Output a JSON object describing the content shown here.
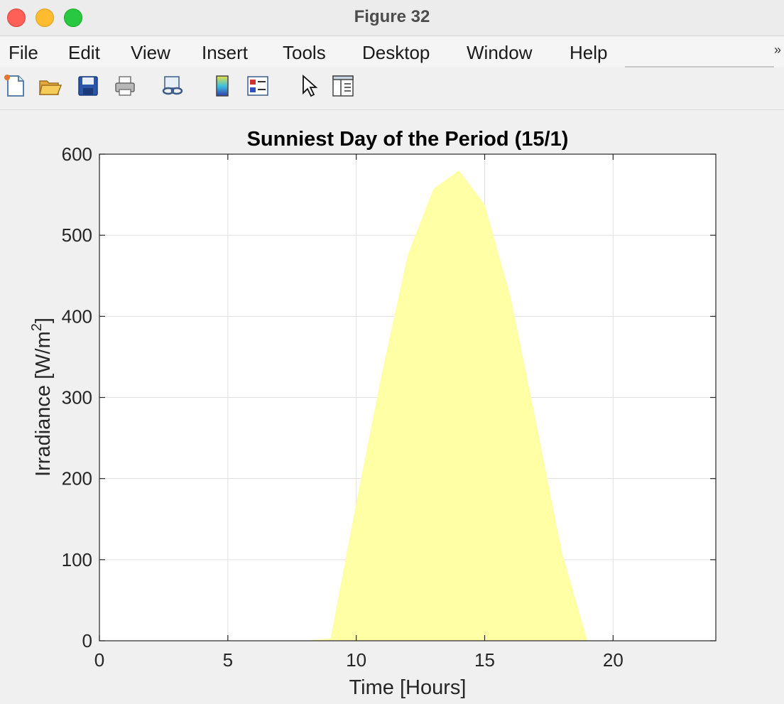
{
  "window": {
    "title": "Figure 32"
  },
  "menu": {
    "items": [
      "File",
      "Edit",
      "View",
      "Insert",
      "Tools",
      "Desktop",
      "Window",
      "Help"
    ],
    "overflow": "»"
  },
  "toolbar": {
    "icons": [
      "new-figure-icon",
      "open-file-icon",
      "save-icon",
      "print-icon",
      "link-icon",
      "colorbar-icon",
      "legend-icon",
      "pointer-icon",
      "property-editor-icon"
    ]
  },
  "colors": {
    "fill": "#ffffa6",
    "axes_bg": "#ffffff",
    "grid": "#e0e0e0"
  },
  "chart_data": {
    "type": "area",
    "title": "Sunniest Day of the Period (15/1)",
    "xlabel": "Time [Hours]",
    "ylabel_main": "Irradiance [W/m",
    "ylabel_sup": "2",
    "ylabel_end": "]",
    "xlim": [
      0,
      24
    ],
    "ylim": [
      0,
      600
    ],
    "xticks": [
      0,
      5,
      10,
      15,
      20
    ],
    "yticks": [
      0,
      100,
      200,
      300,
      400,
      500,
      600
    ],
    "grid": true,
    "x": [
      0,
      1,
      2,
      3,
      4,
      5,
      6,
      7,
      8,
      9,
      10,
      11,
      12,
      13,
      14,
      15,
      16,
      17,
      18,
      19,
      20,
      21,
      22,
      23
    ],
    "values": [
      0,
      0,
      0,
      0,
      0,
      0,
      0,
      0,
      0,
      3,
      170,
      330,
      475,
      557,
      580,
      538,
      425,
      270,
      110,
      0,
      0,
      0,
      0,
      0
    ]
  }
}
